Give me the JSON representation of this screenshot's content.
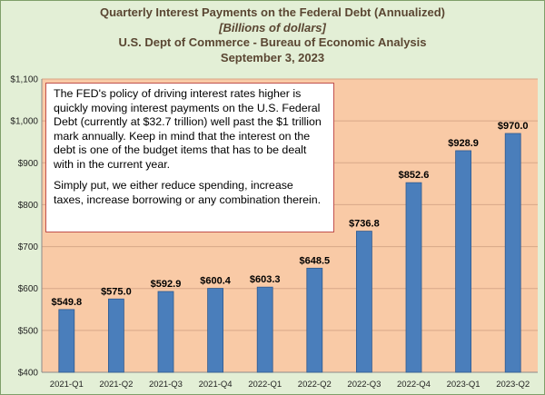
{
  "chart_data": {
    "type": "bar",
    "title": "Quarterly Interest Payments on the Federal Debt (Annualized)",
    "subtitle_units": "Billions of dollars",
    "subtitle_source": "U.S. Dept of Commerce - Bureau of Economic Analysis",
    "subtitle_date": "September 3, 2023",
    "categories": [
      "2021-Q1",
      "2021-Q2",
      "2021-Q3",
      "2021-Q4",
      "2022-Q1",
      "2022-Q2",
      "2022-Q3",
      "2022-Q4",
      "2023-Q1",
      "2023-Q2"
    ],
    "values": [
      549.8,
      575.0,
      592.9,
      600.4,
      603.3,
      648.5,
      736.8,
      852.6,
      928.9,
      970.0
    ],
    "data_labels": [
      "$549.8",
      "$575.0",
      "$592.9",
      "$600.4",
      "$603.3",
      "$648.5",
      "$736.8",
      "$852.6",
      "$928.9",
      "$970.0"
    ],
    "ylim": [
      400,
      1100
    ],
    "yticks": [
      400,
      500,
      600,
      700,
      800,
      900,
      1000,
      1100
    ],
    "ytick_labels": [
      "$400",
      "$500",
      "$600",
      "$700",
      "$800",
      "$900",
      "$1,000",
      "$1,100"
    ],
    "grid": true,
    "xlabel": "",
    "ylabel": "",
    "annotation": [
      "The FED's policy of driving interest rates higher is quickly moving interest payments on the U.S. Federal Debt (currently at $32.7 trillion) well past the $1 trillion mark annually.  Keep in mind that the interest on the debt is one of the budget items that has to be dealt with in the current year.",
      "Simply put, we either reduce spending, increase taxes, increase borrowing or any combination therein."
    ]
  },
  "colors": {
    "background": "#e3efd6",
    "plot_area": "#f9caa6",
    "bar": "#4a7ebb",
    "bar_edge": "#2f5a8f",
    "title_text": "#5a4632",
    "annotation_border": "#c0504d"
  }
}
